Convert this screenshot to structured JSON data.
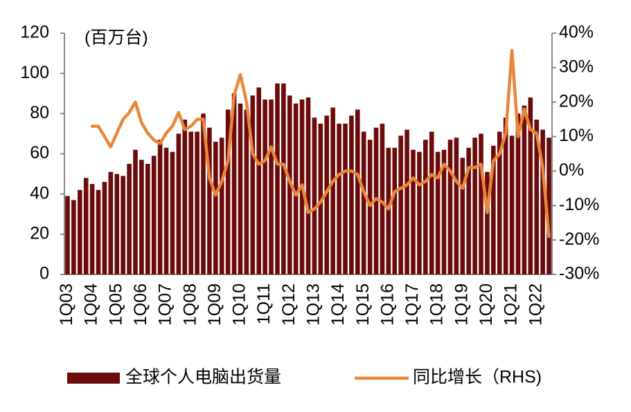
{
  "chart_data": {
    "type": "bar_line",
    "annotation": "(百万台)",
    "categories": [
      "1Q03",
      null,
      null,
      null,
      "1Q04",
      null,
      null,
      null,
      "1Q05",
      null,
      null,
      null,
      "1Q06",
      null,
      null,
      null,
      "1Q07",
      null,
      null,
      null,
      "1Q08",
      null,
      null,
      null,
      "1Q09",
      null,
      null,
      null,
      "1Q10",
      null,
      null,
      null,
      "1Q11",
      null,
      null,
      null,
      "1Q12",
      null,
      null,
      null,
      "1Q13",
      null,
      null,
      null,
      "1Q14",
      null,
      null,
      null,
      "1Q15",
      null,
      null,
      null,
      "1Q16",
      null,
      null,
      null,
      "1Q17",
      null,
      null,
      null,
      "1Q18",
      null,
      null,
      null,
      "1Q19",
      null,
      null,
      null,
      "1Q20",
      null,
      null,
      null,
      "1Q21",
      null,
      null,
      null,
      "1Q22",
      null,
      null
    ],
    "series": [
      {
        "name": "全球个人电脑出货量",
        "type": "bar",
        "color": "#6b0b0b",
        "values": [
          39,
          37,
          42,
          48,
          45,
          42,
          46,
          51,
          50,
          49,
          55,
          62,
          57,
          55,
          59,
          67,
          63,
          61,
          70,
          77,
          71,
          71,
          80,
          73,
          66,
          68,
          82,
          90,
          85,
          82,
          89,
          93,
          87,
          87,
          95,
          95,
          89,
          85,
          87,
          88,
          78,
          75,
          79,
          83,
          75,
          75,
          79,
          82,
          71,
          67,
          73,
          75,
          63,
          63,
          69,
          72,
          62,
          61,
          67,
          71,
          61,
          62,
          67,
          68,
          58,
          63,
          68,
          70,
          51,
          64,
          71,
          78,
          69,
          80,
          84,
          88,
          77,
          72,
          68
        ]
      },
      {
        "name": "同比增长（RHS)",
        "type": "line",
        "axis": "y2",
        "color": "#ea8638",
        "values": [
          null,
          null,
          null,
          null,
          13,
          13,
          10,
          7,
          11,
          15,
          17,
          20,
          14,
          11,
          9,
          8,
          11,
          13,
          17,
          12,
          13,
          15,
          15,
          -2,
          -7,
          -3,
          3,
          22,
          28,
          20,
          5,
          2,
          3,
          7,
          2,
          2,
          -3,
          -7,
          -4,
          -12,
          -11,
          -9,
          -6,
          -3,
          -1,
          0,
          0,
          -1,
          -6,
          -10,
          -8,
          -9,
          -11,
          -6,
          -5,
          -4,
          -2,
          -4,
          -3,
          -1,
          -2,
          2,
          0,
          -3,
          -5,
          1,
          1,
          2,
          -12,
          3,
          5,
          11,
          35,
          10,
          18,
          12,
          11,
          1,
          -19
        ]
      }
    ],
    "ylim": [
      0,
      120
    ],
    "yticks": [
      0,
      20,
      40,
      60,
      80,
      100,
      120
    ],
    "y2lim": [
      -30,
      40
    ],
    "y2ticks": [
      {
        "value": -30,
        "label": "-30%"
      },
      {
        "value": -20,
        "label": "-20%"
      },
      {
        "value": -10,
        "label": "-10%"
      },
      {
        "value": 0,
        "label": "0%"
      },
      {
        "value": 10,
        "label": "10%"
      },
      {
        "value": 20,
        "label": "20%"
      },
      {
        "value": 30,
        "label": "30%"
      },
      {
        "value": 40,
        "label": "40%"
      }
    ],
    "legend": "bottom"
  }
}
